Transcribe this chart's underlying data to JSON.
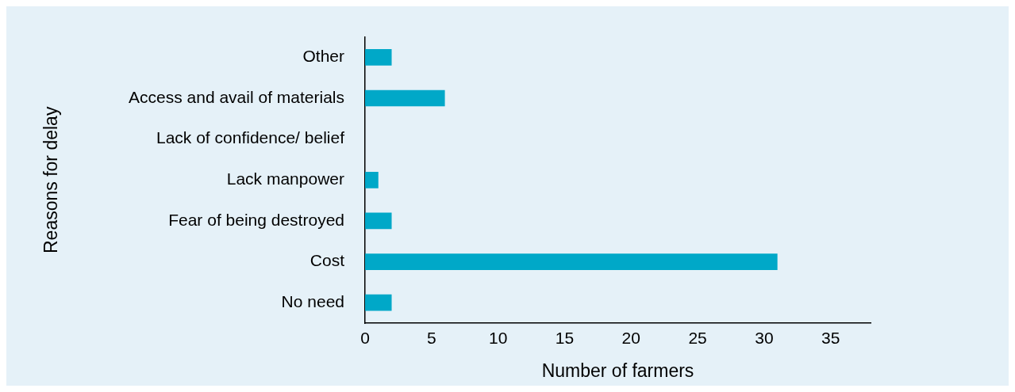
{
  "chart_data": {
    "type": "bar",
    "orientation": "horizontal",
    "xlabel": "Number of farmers",
    "ylabel": "Reasons for delay",
    "categories": [
      "Other",
      "Access and avail of materials",
      "Lack of confidence/ belief",
      "Lack manpower",
      "Fear of being destroyed",
      "Cost",
      "No need"
    ],
    "values": [
      2,
      6,
      0,
      1,
      2,
      31,
      2
    ],
    "color": "#00a8c8",
    "xlim": [
      0,
      38
    ],
    "xticks": [
      0,
      5,
      10,
      15,
      20,
      25,
      30,
      35
    ]
  }
}
